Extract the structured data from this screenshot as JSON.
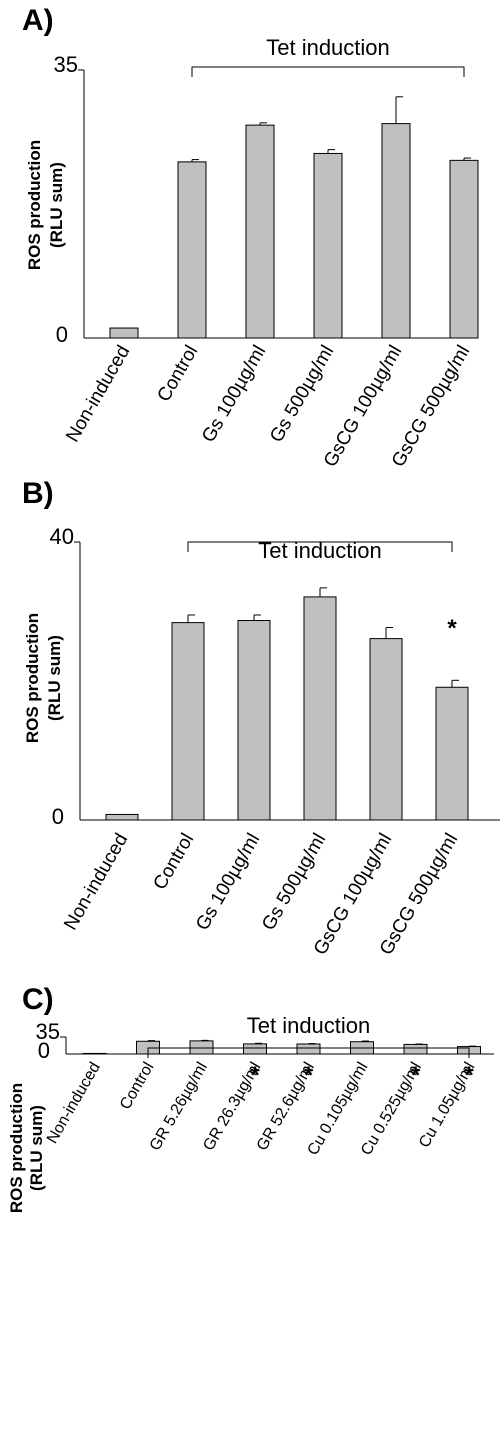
{
  "colors": {
    "bar": "#c0c0c0",
    "stroke": "#000000"
  },
  "chart_data": [
    {
      "type": "bar",
      "panel_label": "A)",
      "ylabel_line1": "ROS production",
      "ylabel_line2": "(RLU sum)",
      "ylim": [
        0,
        35
      ],
      "yticks": [
        "0",
        "35"
      ],
      "bracket_label": "Tet induction",
      "categories": [
        "Non-induced",
        "Control",
        "Gs 100µg/ml",
        "Gs 500µg/ml",
        "GsCG 100µg/ml",
        "GsCG 500µg/ml"
      ],
      "values": [
        1.3,
        23.0,
        27.8,
        24.1,
        28.0,
        23.2
      ],
      "errors": [
        0,
        0.3,
        0.3,
        0.5,
        3.5,
        0.3
      ],
      "significant": [
        false,
        false,
        false,
        false,
        false,
        false
      ]
    },
    {
      "type": "bar",
      "panel_label": "B)",
      "ylabel_line1": "ROS production",
      "ylabel_line2": "(RLU sum)",
      "ylim": [
        0,
        40
      ],
      "yticks": [
        "0",
        "40"
      ],
      "bracket_label": "Tet induction",
      "categories": [
        "Non-induced",
        "Control",
        "Gs 100µg/ml",
        "Gs 500µg/ml",
        "GsCG 100µg/ml",
        "GsCG 500µg/ml"
      ],
      "values": [
        0.8,
        28.4,
        28.7,
        32.1,
        26.1,
        19.1
      ],
      "errors": [
        0,
        1.1,
        0.8,
        1.3,
        1.6,
        1.0
      ],
      "significant": [
        false,
        false,
        false,
        false,
        false,
        true
      ]
    },
    {
      "type": "bar",
      "panel_label": "C)",
      "ylabel_line1": "ROS production",
      "ylabel_line2": "(RLU sum)",
      "ylim": [
        0,
        35
      ],
      "yticks": [
        "0",
        "35"
      ],
      "bracket_label": "Tet induction",
      "categories": [
        "Non-induced",
        "Control",
        "GR 5.26µg/ml",
        "GR 26.3µg/ml",
        "GR 52.6µg/ml",
        "Cu 0.105µg/ml",
        "Cu 0.525µg/ml",
        "Cu 1.05µg/ml"
      ],
      "values": [
        1.2,
        26.2,
        27.0,
        20.8,
        20.6,
        25.3,
        19.7,
        15.3
      ],
      "errors": [
        0,
        1.3,
        1.1,
        1.2,
        0.9,
        1.4,
        0.9,
        0.9
      ],
      "significant": [
        false,
        false,
        false,
        true,
        true,
        false,
        true,
        true
      ]
    }
  ]
}
